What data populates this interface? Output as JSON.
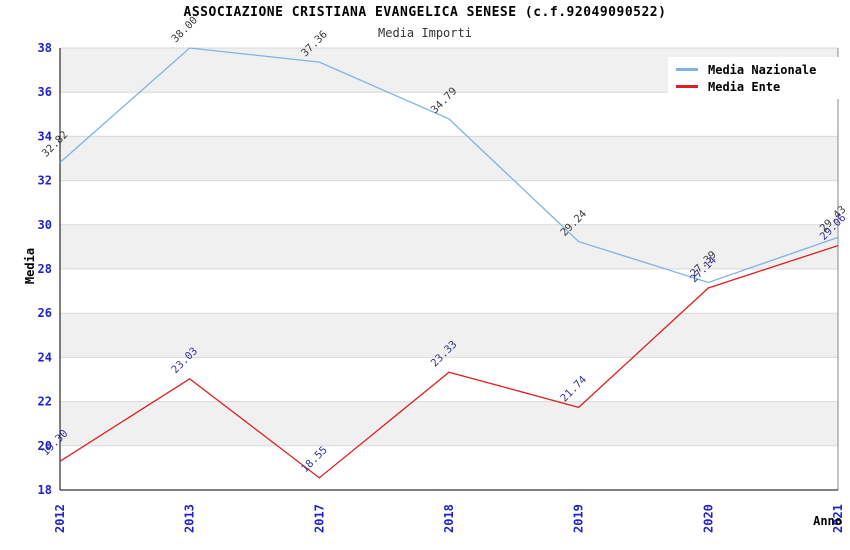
{
  "chart_data": {
    "type": "line",
    "title": "ASSOCIAZIONE CRISTIANA EVANGELICA SENESE (c.f.92049090522)",
    "subtitle": "Media Importi",
    "xlabel": "Anno",
    "ylabel": "Media",
    "categories": [
      "2012",
      "2013",
      "2017",
      "2018",
      "2019",
      "2020",
      "2021"
    ],
    "series": [
      {
        "name": "Media Nazionale",
        "color": "#7eb3e3",
        "label_color": "#3a3a3a",
        "values": [
          32.82,
          38.0,
          37.36,
          34.79,
          29.24,
          27.39,
          29.43
        ]
      },
      {
        "name": "Media Ente",
        "color": "#e01f1f",
        "label_color": "#333399",
        "values": [
          19.3,
          23.03,
          18.55,
          23.33,
          21.74,
          27.14,
          29.06
        ]
      }
    ],
    "ylim": [
      18,
      38
    ],
    "ytick_step": 2,
    "yticks": [
      18,
      20,
      22,
      24,
      26,
      28,
      30,
      32,
      34,
      36,
      38
    ],
    "grid": true,
    "legend_position": "top-right",
    "colors": {
      "tick_label": "#2222cc",
      "band": "#f0f0f0",
      "grid": "#d9d9d9",
      "axis": "#000000",
      "frame_right": "#888888",
      "title": "#000000",
      "subtitle": "#333333",
      "legend_bg": "#ffffff"
    }
  }
}
